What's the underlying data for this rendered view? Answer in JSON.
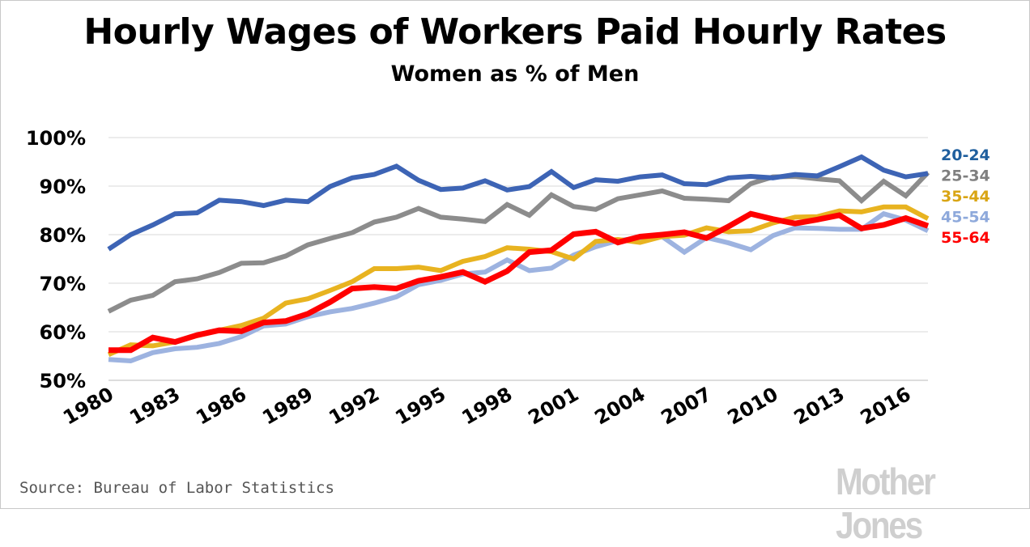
{
  "chart_data": {
    "type": "line",
    "title": "Hourly Wages of Workers Paid Hourly Rates",
    "subtitle": "Women as % of Men",
    "xlabel": "",
    "ylabel": "",
    "x": [
      1980,
      1981,
      1982,
      1983,
      1984,
      1985,
      1986,
      1987,
      1988,
      1989,
      1990,
      1991,
      1992,
      1993,
      1994,
      1995,
      1996,
      1997,
      1998,
      1999,
      2000,
      2001,
      2002,
      2003,
      2004,
      2005,
      2006,
      2007,
      2008,
      2009,
      2010,
      2011,
      2012,
      2013,
      2014,
      2015,
      2016,
      2017
    ],
    "x_ticks": [
      "1980",
      "1983",
      "1986",
      "1989",
      "1992",
      "1995",
      "1998",
      "2001",
      "2004",
      "2007",
      "2010",
      "2013",
      "2016"
    ],
    "x_tick_values": [
      1980,
      1983,
      1986,
      1989,
      1992,
      1995,
      1998,
      2001,
      2004,
      2007,
      2010,
      2013,
      2016
    ],
    "ylim": [
      50,
      100
    ],
    "y_ticks": [
      "50%",
      "60%",
      "70%",
      "80%",
      "90%",
      "100%"
    ],
    "y_tick_values": [
      50,
      60,
      70,
      80,
      90,
      100
    ],
    "grid": "horizontal",
    "legend": "right, end of lines",
    "series": [
      {
        "name": "45-54",
        "color": "#9db3e0",
        "values": [
          54.3,
          54.0,
          55.7,
          56.5,
          56.8,
          57.6,
          59.0,
          61.2,
          61.6,
          63.1,
          64.1,
          64.8,
          65.9,
          67.2,
          69.7,
          70.6,
          71.9,
          72.3,
          74.8,
          72.6,
          73.1,
          75.8,
          77.5,
          78.8,
          79.3,
          79.6,
          76.4,
          79.4,
          78.3,
          76.9,
          79.8,
          81.4,
          81.3,
          81.1,
          81.1,
          84.3,
          83.0,
          80.8
        ]
      },
      {
        "name": "35-44",
        "color": "#e8b320",
        "values": [
          55.3,
          57.3,
          57.1,
          57.9,
          59.2,
          60.3,
          61.3,
          62.8,
          65.9,
          66.8,
          68.5,
          70.3,
          73.0,
          73.0,
          73.3,
          72.6,
          74.5,
          75.5,
          77.3,
          77.0,
          76.5,
          75.0,
          78.6,
          79.0,
          78.4,
          79.6,
          79.9,
          81.4,
          80.6,
          80.8,
          82.4,
          83.6,
          83.7,
          84.9,
          84.7,
          85.7,
          85.7,
          83.3
        ]
      },
      {
        "name": "55-64",
        "color": "#ff0000",
        "values": [
          56.2,
          56.2,
          58.8,
          57.9,
          59.3,
          60.3,
          60.1,
          61.9,
          62.2,
          63.7,
          66.1,
          68.9,
          69.2,
          68.9,
          70.5,
          71.3,
          72.3,
          70.3,
          72.5,
          76.4,
          76.8,
          80.1,
          80.6,
          78.4,
          79.6,
          80.0,
          80.5,
          79.3,
          81.7,
          84.3,
          83.2,
          82.3,
          83.1,
          84.0,
          81.3,
          82.0,
          83.4,
          81.8
        ]
      },
      {
        "name": "25-34",
        "color": "#8c8c8c",
        "values": [
          64.2,
          66.5,
          67.5,
          70.3,
          70.9,
          72.2,
          74.1,
          74.2,
          75.6,
          77.9,
          79.2,
          80.4,
          82.6,
          83.6,
          85.4,
          83.6,
          83.2,
          82.7,
          86.2,
          84.0,
          88.2,
          85.8,
          85.2,
          87.4,
          88.2,
          89.0,
          87.5,
          87.3,
          87.0,
          90.5,
          91.9,
          92.0,
          91.5,
          91.1,
          87.0,
          91.0,
          88.0,
          92.8
        ]
      },
      {
        "name": "20-24",
        "color": "#3d64b5",
        "values": [
          77.0,
          80.0,
          82.0,
          84.3,
          84.5,
          87.1,
          86.8,
          86.0,
          87.1,
          86.8,
          89.9,
          91.7,
          92.4,
          94.1,
          91.2,
          89.3,
          89.6,
          91.1,
          89.2,
          89.9,
          93.0,
          89.7,
          91.3,
          91.0,
          91.9,
          92.3,
          90.5,
          90.3,
          91.7,
          92.0,
          91.7,
          92.4,
          92.1,
          94.0,
          96.0,
          93.3,
          91.9,
          92.6
        ]
      }
    ],
    "legend_order": [
      "20-24",
      "25-34",
      "35-44",
      "45-54",
      "55-64"
    ]
  },
  "source_note": "Source: Bureau of Labor Statistics",
  "brand": "Mother Jones"
}
